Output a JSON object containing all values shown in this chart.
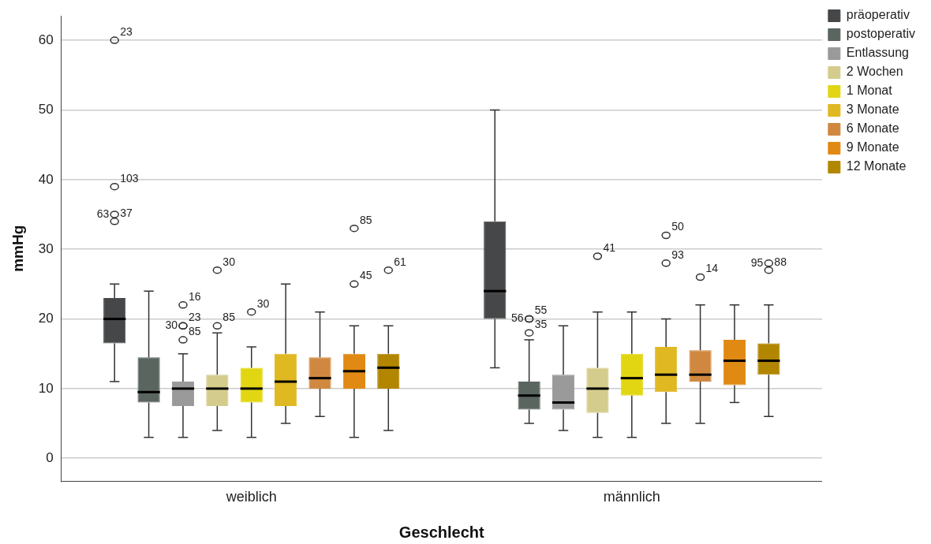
{
  "chart_data": {
    "type": "box",
    "xlabel": "Geschlecht",
    "ylabel": "mmHg",
    "categories": [
      "weiblich",
      "männlich"
    ],
    "ylim": [
      -3.3,
      63.5
    ],
    "yticks": [
      0,
      10,
      20,
      30,
      40,
      50,
      60
    ],
    "grid": "y",
    "legend": "top right",
    "marker": "circle",
    "series": [
      {
        "name": "präoperativ",
        "color": "#454749",
        "boxes": [
          {
            "low": 11,
            "q1": 16.5,
            "median": 20,
            "q3": 23,
            "high": 25,
            "outliers": [
              34,
              35,
              39,
              60
            ]
          },
          {
            "low": 13,
            "q1": 20,
            "median": 24,
            "q3": 34,
            "high": 50
          }
        ]
      },
      {
        "name": "postoperativ",
        "color": "#5a6560",
        "boxes": [
          {
            "low": 3,
            "q1": 8,
            "median": 9.5,
            "q3": 14.5,
            "high": 24
          },
          {
            "low": 5,
            "q1": 7,
            "median": 9,
            "q3": 11,
            "high": 17,
            "outliers": [
              18,
              20,
              20
            ]
          }
        ]
      },
      {
        "name": "Entlassung",
        "color": "#9a9a9a",
        "boxes": [
          {
            "low": 3,
            "q1": 7.5,
            "median": 10,
            "q3": 11,
            "high": 15,
            "outliers": [
              17,
              19,
              19,
              22
            ]
          },
          {
            "low": 4,
            "q1": 7,
            "median": 8,
            "q3": 12,
            "high": 19
          }
        ]
      },
      {
        "name": "2 Wochen",
        "color": "#d4cc8c",
        "boxes": [
          {
            "low": 4,
            "q1": 7.5,
            "median": 10,
            "q3": 12,
            "high": 18,
            "outliers": [
              19,
              27
            ]
          },
          {
            "low": 3,
            "q1": 6.5,
            "median": 10,
            "q3": 13,
            "high": 21,
            "outliers": [
              29
            ]
          }
        ]
      },
      {
        "name": "1 Monat",
        "color": "#e2d613",
        "boxes": [
          {
            "low": 3,
            "q1": 8,
            "median": 10,
            "q3": 13,
            "high": 16,
            "outliers": [
              21
            ]
          },
          {
            "low": 3,
            "q1": 9,
            "median": 11.5,
            "q3": 15,
            "high": 21
          }
        ]
      },
      {
        "name": "3 Monate",
        "color": "#e0b822",
        "boxes": [
          {
            "low": 5,
            "q1": 7.5,
            "median": 11,
            "q3": 15,
            "high": 25
          },
          {
            "low": 5,
            "q1": 9.5,
            "median": 12,
            "q3": 16,
            "high": 20,
            "outliers": [
              28,
              32
            ]
          }
        ]
      },
      {
        "name": "6 Monate",
        "color": "#d08840",
        "boxes": [
          {
            "low": 6,
            "q1": 10,
            "median": 11.5,
            "q3": 14.5,
            "high": 21
          },
          {
            "low": 5,
            "q1": 11,
            "median": 12,
            "q3": 15.5,
            "high": 22,
            "outliers": [
              26
            ]
          }
        ]
      },
      {
        "name": "9 Monate",
        "color": "#e08a14",
        "boxes": [
          {
            "low": 3,
            "q1": 10,
            "median": 12.5,
            "q3": 15,
            "high": 19,
            "outliers": [
              25,
              33
            ]
          },
          {
            "low": 8,
            "q1": 10.5,
            "median": 14,
            "q3": 17,
            "high": 22
          }
        ]
      },
      {
        "name": "12 Monate",
        "color": "#b28600",
        "boxes": [
          {
            "low": 4,
            "q1": 10,
            "median": 13,
            "q3": 15,
            "high": 19,
            "outliers": [
              27
            ]
          },
          {
            "low": 6,
            "q1": 12,
            "median": 14,
            "q3": 16.5,
            "high": 22,
            "outliers": [
              27,
              28
            ]
          }
        ]
      }
    ],
    "annotations": [
      "37",
      "63",
      "103",
      "23",
      "35",
      "55",
      "56",
      "85",
      "23",
      "30",
      "16",
      "85",
      "30",
      "41",
      "30",
      "93",
      "50",
      "14",
      "45",
      "85",
      "61",
      "88",
      "95"
    ]
  }
}
